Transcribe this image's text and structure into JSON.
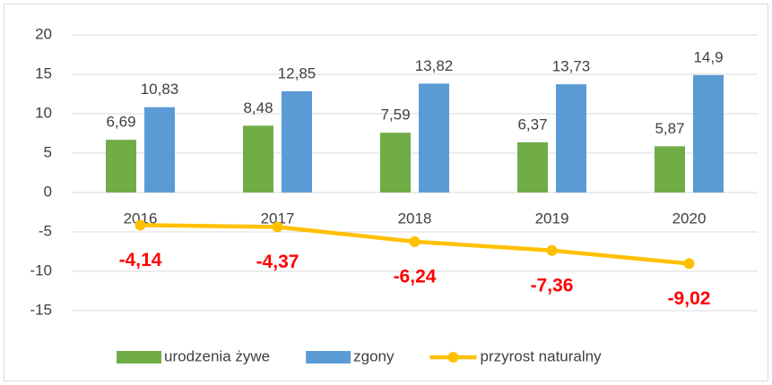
{
  "chart_data": {
    "type": "bar-line",
    "categories": [
      "2016",
      "2017",
      "2018",
      "2019",
      "2020"
    ],
    "series": [
      {
        "name": "urodzenia żywe",
        "color": "#70ad47",
        "type": "bar",
        "values": [
          6.69,
          8.48,
          7.59,
          6.37,
          5.87
        ],
        "value_labels": [
          "6,69",
          "8,48",
          "7,59",
          "6,37",
          "5,87"
        ]
      },
      {
        "name": "zgony",
        "color": "#5b9bd5",
        "type": "bar",
        "values": [
          10.83,
          12.85,
          13.82,
          13.73,
          14.9
        ],
        "value_labels": [
          "10,83",
          "12,85",
          "13,82",
          "13,73",
          "14,9"
        ]
      },
      {
        "name": "przyrost naturalny",
        "color": "#ffc000",
        "type": "line",
        "label_color": "#ff0000",
        "values": [
          -4.14,
          -4.37,
          -6.24,
          -7.36,
          -9.02
        ],
        "value_labels": [
          "-4,14",
          "-4,37",
          "-6,24",
          "-7,36",
          "-9,02"
        ]
      }
    ],
    "ylim": [
      -15,
      20
    ],
    "yticks": [
      -15,
      -10,
      -5,
      0,
      5,
      10,
      15,
      20
    ],
    "grid": true,
    "legend": "bottom"
  }
}
